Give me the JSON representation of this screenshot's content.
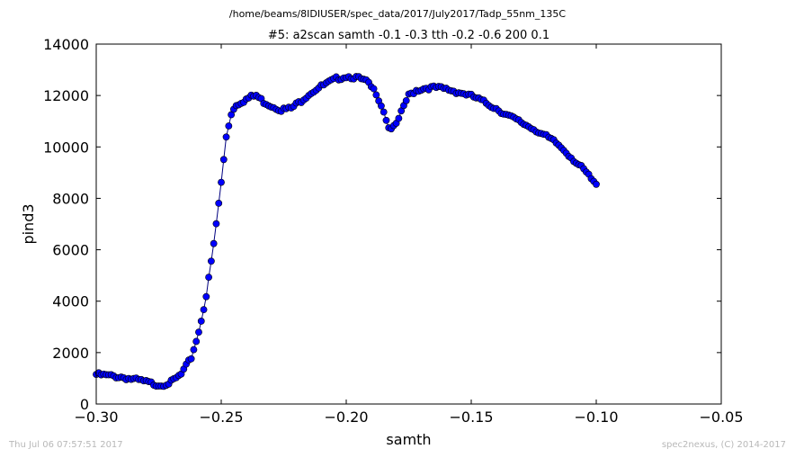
{
  "supertitle": "/home/beams/8IDIUSER/spec_data/2017/July2017/Tadp_55nm_135C",
  "footer": {
    "timestamp": "Thu Jul 06 07:57:51 2017",
    "credit": "spec2nexus, (C) 2014-2017"
  },
  "colors": {
    "series": "#0000ff",
    "line": "#000080"
  },
  "chart_data": {
    "type": "line",
    "title": "#5: a2scan  samth -0.1 -0.3  tth -0.2 -0.6  200 0.1",
    "xlabel": "samth",
    "ylabel": "pind3",
    "xlim": [
      -0.3,
      -0.05
    ],
    "ylim": [
      0,
      14000
    ],
    "xticks": [
      -0.3,
      -0.25,
      -0.2,
      -0.15,
      -0.1,
      -0.05
    ],
    "xtick_labels": [
      "−0.30",
      "−0.25",
      "−0.20",
      "−0.15",
      "−0.10",
      "−0.05"
    ],
    "yticks": [
      0,
      2000,
      4000,
      6000,
      8000,
      10000,
      12000,
      14000
    ],
    "ytick_labels": [
      "0",
      "2000",
      "4000",
      "6000",
      "8000",
      "10000",
      "12000",
      "14000"
    ],
    "grid": false,
    "markers": "circle",
    "x_anchor": [
      -0.3,
      -0.29,
      -0.282,
      -0.277,
      -0.274,
      -0.27,
      -0.266,
      -0.262,
      -0.259,
      -0.256,
      -0.253,
      -0.25,
      -0.248,
      -0.246,
      -0.244,
      -0.241,
      -0.238,
      -0.236,
      -0.233,
      -0.23,
      -0.226,
      -0.222,
      -0.218,
      -0.215,
      -0.212,
      -0.208,
      -0.204,
      -0.2,
      -0.196,
      -0.192,
      -0.188,
      -0.185,
      -0.183,
      -0.181,
      -0.179,
      -0.177,
      -0.175,
      -0.172,
      -0.168,
      -0.164,
      -0.16,
      -0.156,
      -0.152,
      -0.148,
      -0.144,
      -0.14,
      -0.136,
      -0.132,
      -0.128,
      -0.124,
      -0.12,
      -0.116,
      -0.112,
      -0.108,
      -0.104,
      -0.1
    ],
    "y_anchor": [
      1150,
      1050,
      900,
      780,
      740,
      850,
      1150,
      1800,
      2800,
      4200,
      6200,
      8600,
      10400,
      11300,
      11650,
      11800,
      11950,
      12000,
      11750,
      11600,
      11450,
      11500,
      11800,
      12050,
      12250,
      12450,
      12650,
      12750,
      12700,
      12550,
      12100,
      11400,
      10750,
      10750,
      11050,
      11600,
      12000,
      12200,
      12300,
      12300,
      12250,
      12150,
      12050,
      11900,
      11700,
      11500,
      11250,
      11050,
      10850,
      10650,
      10400,
      10150,
      9800,
      9400,
      9000,
      8500
    ],
    "num_points": 201
  }
}
